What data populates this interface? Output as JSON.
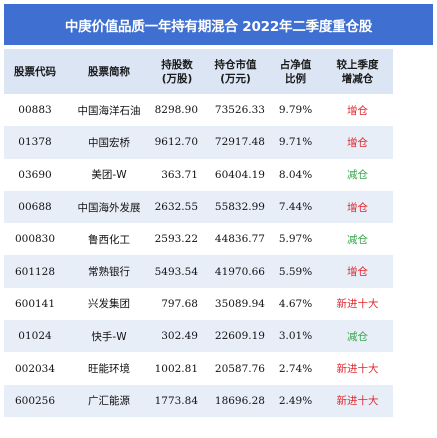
{
  "title": "中庚价值品质一年持有期混合 2022年二季度重仓股",
  "headers": [
    [
      "股票代码"
    ],
    [
      "股票简称"
    ],
    [
      "持股数",
      "(万股)"
    ],
    [
      "持仓市值",
      "(万元)"
    ],
    [
      "占净值",
      "比例"
    ],
    [
      "较上季度",
      "增减仓"
    ]
  ],
  "rows": [
    {
      "code": "00883",
      "name": "中国海洋石油",
      "shares": "8298.90",
      "value": "73526.33",
      "ratio": "9.79%",
      "change": "增仓",
      "change_type": "inc"
    },
    {
      "code": "01378",
      "name": "中国宏桥",
      "shares": "9612.70",
      "value": "72917.48",
      "ratio": "9.71%",
      "change": "增仓",
      "change_type": "inc"
    },
    {
      "code": "03690",
      "name": "美团-W",
      "shares": "363.71",
      "value": "60404.19",
      "ratio": "8.04%",
      "change": "减仓",
      "change_type": "dec"
    },
    {
      "code": "00688",
      "name": "中国海外发展",
      "shares": "2632.55",
      "value": "55832.99",
      "ratio": "7.44%",
      "change": "增仓",
      "change_type": "inc"
    },
    {
      "code": "000830",
      "name": "鲁西化工",
      "shares": "2593.22",
      "value": "44836.77",
      "ratio": "5.97%",
      "change": "减仓",
      "change_type": "dec"
    },
    {
      "code": "601128",
      "name": "常熟银行",
      "shares": "5493.54",
      "value": "41970.66",
      "ratio": "5.59%",
      "change": "增仓",
      "change_type": "inc"
    },
    {
      "code": "600141",
      "name": "兴发集团",
      "shares": "797.68",
      "value": "35089.94",
      "ratio": "4.67%",
      "change": "新进十大",
      "change_type": "new"
    },
    {
      "code": "01024",
      "name": "快手-W",
      "shares": "302.49",
      "value": "22609.19",
      "ratio": "3.01%",
      "change": "减仓",
      "change_type": "dec"
    },
    {
      "code": "002034",
      "name": "旺能环境",
      "shares": "1002.81",
      "value": "20587.76",
      "ratio": "2.74%",
      "change": "新进十大",
      "change_type": "new"
    },
    {
      "code": "600256",
      "name": "广汇能源",
      "shares": "1773.84",
      "value": "18696.28",
      "ratio": "2.49%",
      "change": "新进十大",
      "change_type": "new"
    }
  ],
  "colors": {
    "header_bar": "#3f6fd1",
    "header_row": "#dbe5f4",
    "alt_row": "#e8eef8",
    "increase": "#e0262d",
    "decrease": "#3aa84d",
    "new": "#e0262d"
  }
}
